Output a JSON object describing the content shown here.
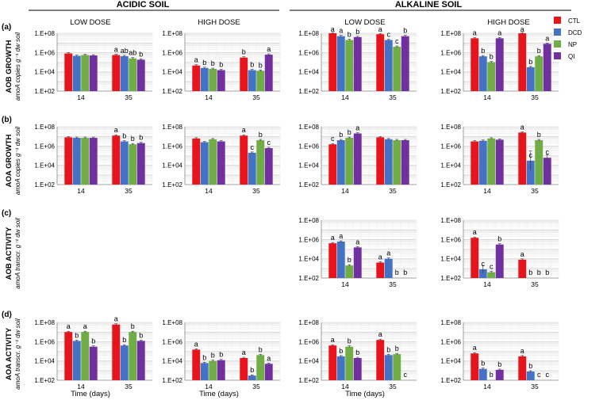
{
  "figure": {
    "headers": {
      "acidic": "ACIDIC SOIL",
      "alkaline": "ALKALINE SOIL"
    },
    "dose_labels": [
      "LOW DOSE",
      "HIGH DOSE",
      "LOW DOSE",
      "HIGH DOSE"
    ],
    "x_title": "Time (days)",
    "rows": [
      {
        "tag": "(a)",
        "title": "AOB GROWTH",
        "unit": "amoA copies g⁻¹ dw soil"
      },
      {
        "tag": "(b)",
        "title": "AOA GROWTH",
        "unit": "amoA copies g⁻¹ dw soil"
      },
      {
        "tag": "(c)",
        "title": "AOB ACTIVITY",
        "unit": "amoA transcr. g⁻¹ dw soil"
      },
      {
        "tag": "(d)",
        "title": "AOA ACTIVITY",
        "unit": "amoA transcr. g⁻¹ dw soil"
      }
    ],
    "legend": [
      {
        "label": "CTL",
        "color": "#e8141c"
      },
      {
        "label": "DCD",
        "color": "#4472c4"
      },
      {
        "label": "NP",
        "color": "#70ad47"
      },
      {
        "label": "QI",
        "color": "#7030a0"
      }
    ]
  },
  "chart_data": [
    {
      "type": "bar",
      "id": "a-acid-low",
      "row": "AOB GROWTH",
      "soil": "ACIDIC SOIL",
      "dose": "LOW DOSE",
      "yscale": "log",
      "ylim": [
        100,
        100000000
      ],
      "yticks": [
        "1.E+02",
        "1.E+04",
        "1.E+06",
        "1.E+08"
      ],
      "categories": [
        "14",
        "35"
      ],
      "series": [
        {
          "name": "CTL",
          "values": [
            800000,
            550000
          ]
        },
        {
          "name": "DCD",
          "values": [
            450000,
            420000
          ]
        },
        {
          "name": "NP",
          "values": [
            550000,
            250000
          ]
        },
        {
          "name": "QI",
          "values": [
            500000,
            180000
          ]
        }
      ],
      "letters": [
        [
          "",
          "",
          "",
          ""
        ],
        [
          "a",
          "ab",
          "ab",
          "b"
        ]
      ],
      "errors": [
        [
          0,
          0,
          0,
          0
        ],
        [
          0,
          0,
          0,
          0
        ]
      ]
    },
    {
      "type": "bar",
      "id": "a-acid-high",
      "row": "AOB GROWTH",
      "soil": "ACIDIC SOIL",
      "dose": "HIGH DOSE",
      "yscale": "log",
      "ylim": [
        100,
        100000000
      ],
      "yticks": [
        "1.E+02",
        "1.E+04",
        "1.E+06",
        "1.E+08"
      ],
      "categories": [
        "14",
        "35"
      ],
      "series": [
        {
          "name": "CTL",
          "values": [
            45000,
            300000
          ]
        },
        {
          "name": "DCD",
          "values": [
            25000,
            15000
          ]
        },
        {
          "name": "NP",
          "values": [
            20000,
            13000
          ]
        },
        {
          "name": "QI",
          "values": [
            15000,
            600000
          ]
        }
      ],
      "letters": [
        [
          "a",
          "b",
          "b",
          "b"
        ],
        [
          "b",
          "b",
          "b",
          "a"
        ]
      ],
      "errors": [
        [
          0,
          0,
          0,
          0
        ],
        [
          0,
          0,
          0,
          0
        ]
      ]
    },
    {
      "type": "bar",
      "id": "a-alk-low",
      "row": "AOB GROWTH",
      "soil": "ALKALINE SOIL",
      "dose": "LOW DOSE",
      "yscale": "log",
      "ylim": [
        100,
        100000000
      ],
      "yticks": [
        "1.E+02",
        "1.E+04",
        "1.E+06",
        "1.E+08"
      ],
      "categories": [
        "14",
        "35"
      ],
      "series": [
        {
          "name": "CTL",
          "values": [
            100000000,
            80000000
          ]
        },
        {
          "name": "DCD",
          "values": [
            50000000,
            20000000
          ]
        },
        {
          "name": "NP",
          "values": [
            20000000,
            4000000
          ]
        },
        {
          "name": "QI",
          "values": [
            40000000,
            50000000
          ]
        }
      ],
      "letters": [
        [
          "a",
          "a",
          "b",
          "b"
        ],
        [
          "a",
          "c",
          "c",
          "b"
        ]
      ],
      "errors": [
        [
          0,
          0,
          0,
          0
        ],
        [
          0,
          0,
          0,
          0
        ]
      ]
    },
    {
      "type": "bar",
      "id": "a-alk-high",
      "row": "AOB GROWTH",
      "soil": "ALKALINE SOIL",
      "dose": "HIGH DOSE",
      "yscale": "log",
      "ylim": [
        100,
        100000000
      ],
      "yticks": [
        "1.E+02",
        "1.E+04",
        "1.E+06",
        "1.E+08"
      ],
      "categories": [
        "14",
        "35"
      ],
      "series": [
        {
          "name": "CTL",
          "values": [
            30000000,
            100000000
          ]
        },
        {
          "name": "DCD",
          "values": [
            400000,
            30000
          ]
        },
        {
          "name": "NP",
          "values": [
            100000,
            400000
          ]
        },
        {
          "name": "QI",
          "values": [
            30000000,
            8000000
          ]
        }
      ],
      "letters": [
        [
          "a",
          "b",
          "b",
          "a"
        ],
        [
          "a",
          "b",
          "b",
          "a"
        ]
      ],
      "errors": [
        [
          0,
          0,
          0,
          0
        ],
        [
          0,
          0,
          0,
          0
        ]
      ]
    },
    {
      "type": "bar",
      "id": "b-acid-low",
      "row": "AOA GROWTH",
      "soil": "ACIDIC SOIL",
      "dose": "LOW DOSE",
      "yscale": "log",
      "ylim": [
        100,
        100000000
      ],
      "yticks": [
        "1.E+02",
        "1.E+04",
        "1.E+06",
        "1.E+08"
      ],
      "categories": [
        "14",
        "35"
      ],
      "series": [
        {
          "name": "CTL",
          "values": [
            8000000,
            12000000
          ]
        },
        {
          "name": "DCD",
          "values": [
            7000000,
            3000000
          ]
        },
        {
          "name": "NP",
          "values": [
            7000000,
            1500000
          ]
        },
        {
          "name": "QI",
          "values": [
            7000000,
            2000000
          ]
        }
      ],
      "letters": [
        [
          "",
          "",
          "",
          ""
        ],
        [
          "a",
          "b",
          "b",
          "b"
        ]
      ],
      "errors": [
        [
          0,
          0,
          0,
          0
        ],
        [
          0,
          0,
          0,
          0
        ]
      ]
    },
    {
      "type": "bar",
      "id": "b-acid-high",
      "row": "AOA GROWTH",
      "soil": "ACIDIC SOIL",
      "dose": "HIGH DOSE",
      "yscale": "log",
      "ylim": [
        100,
        100000000
      ],
      "yticks": [
        "1.E+02",
        "1.E+04",
        "1.E+06",
        "1.E+08"
      ],
      "categories": [
        "14",
        "35"
      ],
      "series": [
        {
          "name": "CTL",
          "values": [
            6000000,
            12000000
          ]
        },
        {
          "name": "DCD",
          "values": [
            2500000,
            200000
          ]
        },
        {
          "name": "NP",
          "values": [
            5000000,
            4000000
          ]
        },
        {
          "name": "QI",
          "values": [
            3000000,
            600000
          ]
        }
      ],
      "letters": [
        [
          "",
          "",
          "",
          ""
        ],
        [
          "a",
          "c",
          "b",
          "c"
        ]
      ],
      "errors": [
        [
          0,
          0,
          0,
          0
        ],
        [
          0,
          0,
          0,
          0
        ]
      ]
    },
    {
      "type": "bar",
      "id": "b-alk-low",
      "row": "AOA GROWTH",
      "soil": "ALKALINE SOIL",
      "dose": "LOW DOSE",
      "yscale": "log",
      "ylim": [
        100,
        100000000
      ],
      "yticks": [
        "1.E+02",
        "1.E+04",
        "1.E+06",
        "1.E+08"
      ],
      "categories": [
        "14",
        "35"
      ],
      "series": [
        {
          "name": "CTL",
          "values": [
            1500000,
            8000000
          ]
        },
        {
          "name": "DCD",
          "values": [
            4000000,
            5000000
          ]
        },
        {
          "name": "NP",
          "values": [
            7000000,
            4000000
          ]
        },
        {
          "name": "QI",
          "values": [
            20000000,
            4000000
          ]
        }
      ],
      "letters": [
        [
          "c",
          "b",
          "b",
          "a"
        ],
        [
          "",
          "",
          "",
          ""
        ]
      ],
      "errors": [
        [
          0,
          0,
          0,
          0
        ],
        [
          0,
          0,
          0,
          0
        ]
      ]
    },
    {
      "type": "bar",
      "id": "b-alk-high",
      "row": "AOA GROWTH",
      "soil": "ALKALINE SOIL",
      "dose": "HIGH DOSE",
      "yscale": "log",
      "ylim": [
        100,
        100000000
      ],
      "yticks": [
        "1.E+02",
        "1.E+04",
        "1.E+06",
        "1.E+08"
      ],
      "categories": [
        "14",
        "35"
      ],
      "series": [
        {
          "name": "CTL",
          "values": [
            3000000,
            25000000
          ]
        },
        {
          "name": "DCD",
          "values": [
            3500000,
            30000
          ]
        },
        {
          "name": "NP",
          "values": [
            6000000,
            4000000
          ]
        },
        {
          "name": "QI",
          "values": [
            4500000,
            60000
          ]
        }
      ],
      "letters": [
        [
          "",
          "",
          "",
          ""
        ],
        [
          "a",
          "c",
          "b",
          "c"
        ]
      ],
      "errors": [
        [
          0,
          0,
          0,
          0
        ],
        [
          0,
          1,
          0,
          0.3
        ]
      ]
    },
    {
      "type": "bar",
      "id": "c-alk-low",
      "row": "AOB ACTIVITY",
      "soil": "ALKALINE SOIL",
      "dose": "LOW DOSE",
      "yscale": "log",
      "ylim": [
        100,
        100000000
      ],
      "yticks": [
        "1.E+02",
        "1.E+04",
        "1.E+06",
        "1.E+08"
      ],
      "categories": [
        "14",
        "35"
      ],
      "series": [
        {
          "name": "CTL",
          "values": [
            400000,
            4000
          ]
        },
        {
          "name": "DCD",
          "values": [
            600000,
            10000
          ]
        },
        {
          "name": "NP",
          "values": [
            2000,
            0
          ]
        },
        {
          "name": "QI",
          "values": [
            150000,
            0
          ]
        }
      ],
      "letters": [
        [
          "a",
          "a",
          "b",
          "a"
        ],
        [
          "a",
          "a",
          "b",
          "b"
        ]
      ],
      "errors": [
        [
          0,
          0,
          0,
          0
        ],
        [
          0,
          0,
          0,
          0
        ]
      ]
    },
    {
      "type": "bar",
      "id": "c-alk-high",
      "row": "AOB ACTIVITY",
      "soil": "ALKALINE SOIL",
      "dose": "HIGH DOSE",
      "yscale": "log",
      "ylim": [
        100,
        100000000
      ],
      "yticks": [
        "1.E+02",
        "1.E+04",
        "1.E+06",
        "1.E+08"
      ],
      "categories": [
        "14",
        "35"
      ],
      "series": [
        {
          "name": "CTL",
          "values": [
            1500000,
            8000
          ]
        },
        {
          "name": "DCD",
          "values": [
            800,
            0
          ]
        },
        {
          "name": "NP",
          "values": [
            400,
            0
          ]
        },
        {
          "name": "QI",
          "values": [
            300000,
            0
          ]
        }
      ],
      "letters": [
        [
          "a",
          "c",
          "c",
          "b"
        ],
        [
          "a",
          "b",
          "b",
          "b"
        ]
      ],
      "errors": [
        [
          0,
          0.4,
          0,
          0
        ],
        [
          0,
          0,
          0,
          0
        ]
      ]
    },
    {
      "type": "bar",
      "id": "d-acid-low",
      "row": "AOA ACTIVITY",
      "soil": "ACIDIC SOIL",
      "dose": "LOW DOSE",
      "yscale": "log",
      "ylim": [
        100,
        100000000
      ],
      "yticks": [
        "1.E+02",
        "1.E+04",
        "1.E+06",
        "1.E+08"
      ],
      "categories": [
        "14",
        "35"
      ],
      "series": [
        {
          "name": "CTL",
          "values": [
            10000000,
            60000000
          ]
        },
        {
          "name": "DCD",
          "values": [
            1200000,
            400000
          ]
        },
        {
          "name": "NP",
          "values": [
            10000000,
            10000000
          ]
        },
        {
          "name": "QI",
          "values": [
            300000,
            1200000
          ]
        }
      ],
      "letters": [
        [
          "a",
          "b",
          "a",
          "b"
        ],
        [
          "a",
          "b",
          "b",
          "b"
        ]
      ],
      "errors": [
        [
          0,
          0,
          0,
          0
        ],
        [
          0,
          0,
          0,
          0
        ]
      ]
    },
    {
      "type": "bar",
      "id": "d-acid-high",
      "row": "AOA ACTIVITY",
      "soil": "ACIDIC SOIL",
      "dose": "HIGH DOSE",
      "yscale": "log",
      "ylim": [
        100,
        100000000
      ],
      "yticks": [
        "1.E+02",
        "1.E+04",
        "1.E+06",
        "1.E+08"
      ],
      "categories": [
        "14",
        "35"
      ],
      "series": [
        {
          "name": "CTL",
          "values": [
            150000,
            20000
          ]
        },
        {
          "name": "DCD",
          "values": [
            6000,
            300
          ]
        },
        {
          "name": "NP",
          "values": [
            10000,
            40000
          ]
        },
        {
          "name": "QI",
          "values": [
            12000,
            5000
          ]
        }
      ],
      "letters": [
        [
          "a",
          "b",
          "b",
          "b"
        ],
        [
          "a",
          "b",
          "b",
          "a"
        ]
      ],
      "errors": [
        [
          0,
          0,
          0,
          0
        ],
        [
          0,
          0,
          0,
          0
        ]
      ]
    },
    {
      "type": "bar",
      "id": "d-alk-low",
      "row": "AOA ACTIVITY",
      "soil": "ALKALINE SOIL",
      "dose": "LOW DOSE",
      "yscale": "log",
      "ylim": [
        100,
        100000000
      ],
      "yticks": [
        "1.E+02",
        "1.E+04",
        "1.E+06",
        "1.E+08"
      ],
      "categories": [
        "14",
        "35"
      ],
      "series": [
        {
          "name": "CTL",
          "values": [
            400000,
            1500000
          ]
        },
        {
          "name": "DCD",
          "values": [
            30000,
            40000
          ]
        },
        {
          "name": "NP",
          "values": [
            300000,
            50000
          ]
        },
        {
          "name": "QI",
          "values": [
            20000,
            0
          ]
        }
      ],
      "letters": [
        [
          "a",
          "b",
          "b",
          "b"
        ],
        [
          "a",
          "b",
          "b",
          "c"
        ]
      ],
      "errors": [
        [
          0,
          0,
          0,
          0
        ],
        [
          0,
          0,
          0,
          0
        ]
      ]
    },
    {
      "type": "bar",
      "id": "d-alk-high",
      "row": "AOA ACTIVITY",
      "soil": "ALKALINE SOIL",
      "dose": "HIGH DOSE",
      "yscale": "log",
      "ylim": [
        100,
        100000000
      ],
      "yticks": [
        "1.E+02",
        "1.E+04",
        "1.E+06",
        "1.E+08"
      ],
      "categories": [
        "14",
        "35"
      ],
      "series": [
        {
          "name": "CTL",
          "values": [
            60000,
            30000
          ]
        },
        {
          "name": "DCD",
          "values": [
            1500,
            800
          ]
        },
        {
          "name": "NP",
          "values": [
            0,
            0
          ]
        },
        {
          "name": "QI",
          "values": [
            1200,
            0
          ]
        }
      ],
      "letters": [
        [
          "a",
          "b",
          "b",
          "b"
        ],
        [
          "a",
          "b",
          "c",
          "c"
        ]
      ],
      "errors": [
        [
          0,
          0,
          0,
          0
        ],
        [
          0,
          0,
          0,
          0
        ]
      ]
    }
  ]
}
